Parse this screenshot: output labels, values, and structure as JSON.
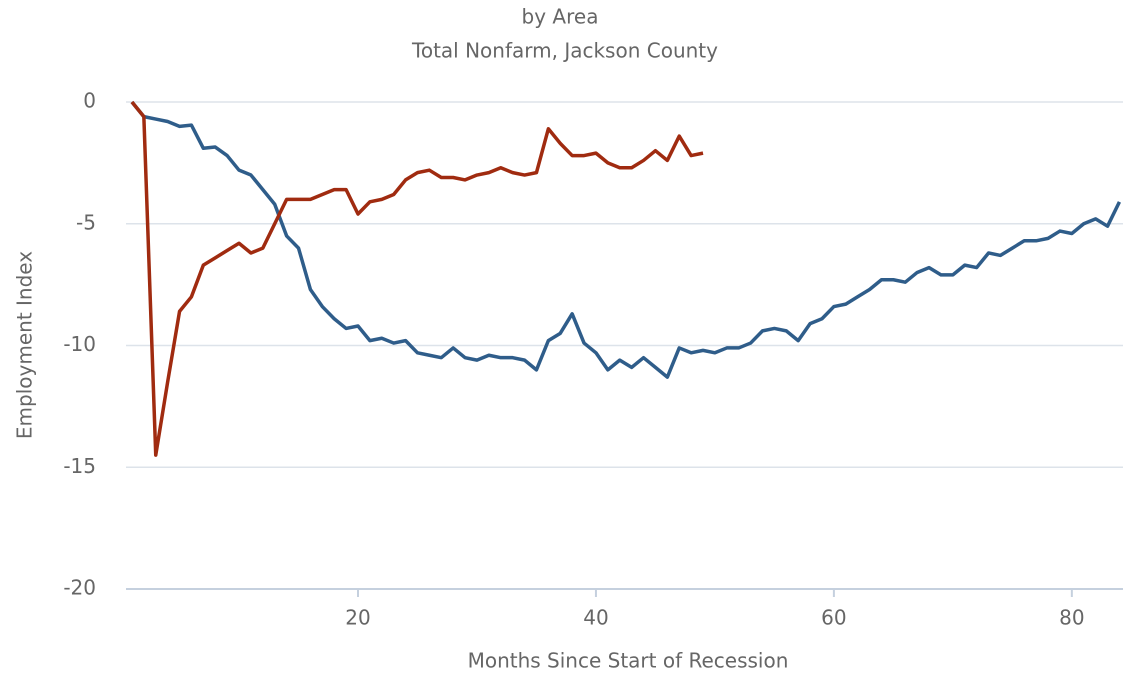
{
  "chart_data": {
    "type": "line",
    "title": "by Area",
    "subtitle": "Total Nonfarm, Jackson County",
    "xlabel": "Months Since Start of Recession",
    "ylabel": "Employment Index",
    "x": [
      1,
      2,
      3,
      4,
      5,
      6,
      7,
      8,
      9,
      10,
      11,
      12,
      13,
      14,
      15,
      16,
      17,
      18,
      19,
      20,
      21,
      22,
      23,
      24,
      25,
      26,
      27,
      28,
      29,
      30,
      31,
      32,
      33,
      34,
      35,
      36,
      37,
      38,
      39,
      40,
      41,
      42,
      43,
      44,
      45,
      46,
      47,
      48,
      49,
      50,
      51,
      52,
      53,
      54,
      55,
      56,
      57,
      58,
      59,
      60,
      61,
      62,
      63,
      64,
      65,
      66,
      67,
      68,
      69,
      70,
      71,
      72,
      73,
      74,
      75,
      76,
      77,
      78,
      79,
      80,
      81,
      82,
      83,
      84
    ],
    "series": [
      {
        "color": "#2f5d8a",
        "values": [
          0,
          -0.6,
          -0.7,
          -0.8,
          -1.0,
          -0.95,
          -1.9,
          -1.85,
          -2.2,
          -2.8,
          -3.0,
          -3.6,
          -4.2,
          -5.5,
          -6.0,
          -7.7,
          -8.4,
          -8.9,
          -9.3,
          -9.2,
          -9.8,
          -9.7,
          -9.9,
          -9.8,
          -10.3,
          -10.4,
          -10.5,
          -10.1,
          -10.5,
          -10.6,
          -10.4,
          -10.5,
          -10.5,
          -10.6,
          -11.0,
          -9.8,
          -9.5,
          -8.7,
          -9.9,
          -10.3,
          -11.0,
          -10.6,
          -10.9,
          -10.5,
          -10.9,
          -11.3,
          -10.1,
          -10.3,
          -10.2,
          -10.3,
          -10.1,
          -10.1,
          -9.9,
          -9.4,
          -9.3,
          -9.4,
          -9.8,
          -9.1,
          -8.9,
          -8.4,
          -8.3,
          -8.0,
          -7.7,
          -7.3,
          -7.3,
          -7.4,
          -7.0,
          -6.8,
          -7.1,
          -7.1,
          -6.7,
          -6.8,
          -6.2,
          -6.3,
          -6.0,
          -5.7,
          -5.7,
          -5.6,
          -5.3,
          -5.4,
          -5.0,
          -4.8,
          -5.1,
          -4.1
        ]
      },
      {
        "color": "#a02b10",
        "values": [
          0,
          -0.6,
          -14.5,
          -11.5,
          -8.6,
          -8.0,
          -6.7,
          -6.4,
          -6.1,
          -5.8,
          -6.2,
          -6.0,
          -5.0,
          -4.0,
          -4.0,
          -4.0,
          -3.8,
          -3.6,
          -3.6,
          -4.6,
          -4.1,
          -4.0,
          -3.8,
          -3.2,
          -2.9,
          -2.8,
          -3.1,
          -3.1,
          -3.2,
          -3.0,
          -2.9,
          -2.7,
          -2.9,
          -3.0,
          -2.9,
          -1.1,
          -1.7,
          -2.2,
          -2.2,
          -2.1,
          -2.5,
          -2.7,
          -2.7,
          -2.4,
          -2.0,
          -2.4,
          -1.4,
          -2.2,
          -2.1,
          null,
          null,
          null,
          null,
          null,
          null,
          null,
          null,
          null,
          null,
          null,
          null,
          null,
          null,
          null,
          null,
          null,
          null,
          null,
          null,
          null,
          null,
          null,
          null,
          null,
          null,
          null,
          null,
          null,
          null,
          null,
          null,
          null,
          null,
          null
        ]
      }
    ],
    "xlim": [
      0.5,
      84.3
    ],
    "xticks": [
      20,
      40,
      60,
      80
    ],
    "ylim": [
      -20,
      0
    ],
    "yticks": [
      0,
      -5,
      -10,
      -15,
      -20
    ],
    "grid": true
  }
}
